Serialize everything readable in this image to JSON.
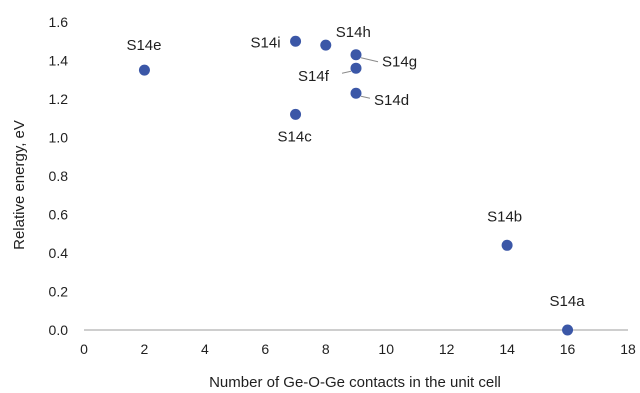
{
  "chart_data": {
    "type": "scatter",
    "title": "",
    "xlabel": "Number of Ge-O-Ge contacts in the unit cell",
    "ylabel": "Relative energy, eV",
    "xlim": [
      0,
      18
    ],
    "ylim": [
      0,
      1.6
    ],
    "x_ticks": [
      "0",
      "2",
      "4",
      "6",
      "8",
      "10",
      "12",
      "14",
      "16",
      "18"
    ],
    "y_ticks": [
      "0.0",
      "0.2",
      "0.4",
      "0.6",
      "0.8",
      "1.0",
      "1.2",
      "1.4",
      "1.6"
    ],
    "grid": false,
    "legend": "none",
    "marker_color": "#3b57a7",
    "points": [
      {
        "label": "S14a",
        "x": 16,
        "y": 0.0
      },
      {
        "label": "S14b",
        "x": 14,
        "y": 0.44
      },
      {
        "label": "S14c",
        "x": 7,
        "y": 1.12
      },
      {
        "label": "S14d",
        "x": 9,
        "y": 1.23
      },
      {
        "label": "S14e",
        "x": 2,
        "y": 1.35
      },
      {
        "label": "S14f",
        "x": 9,
        "y": 1.36
      },
      {
        "label": "S14g",
        "x": 9,
        "y": 1.43
      },
      {
        "label": "S14h",
        "x": 8,
        "y": 1.48
      },
      {
        "label": "S14i",
        "x": 7,
        "y": 1.5
      }
    ]
  }
}
